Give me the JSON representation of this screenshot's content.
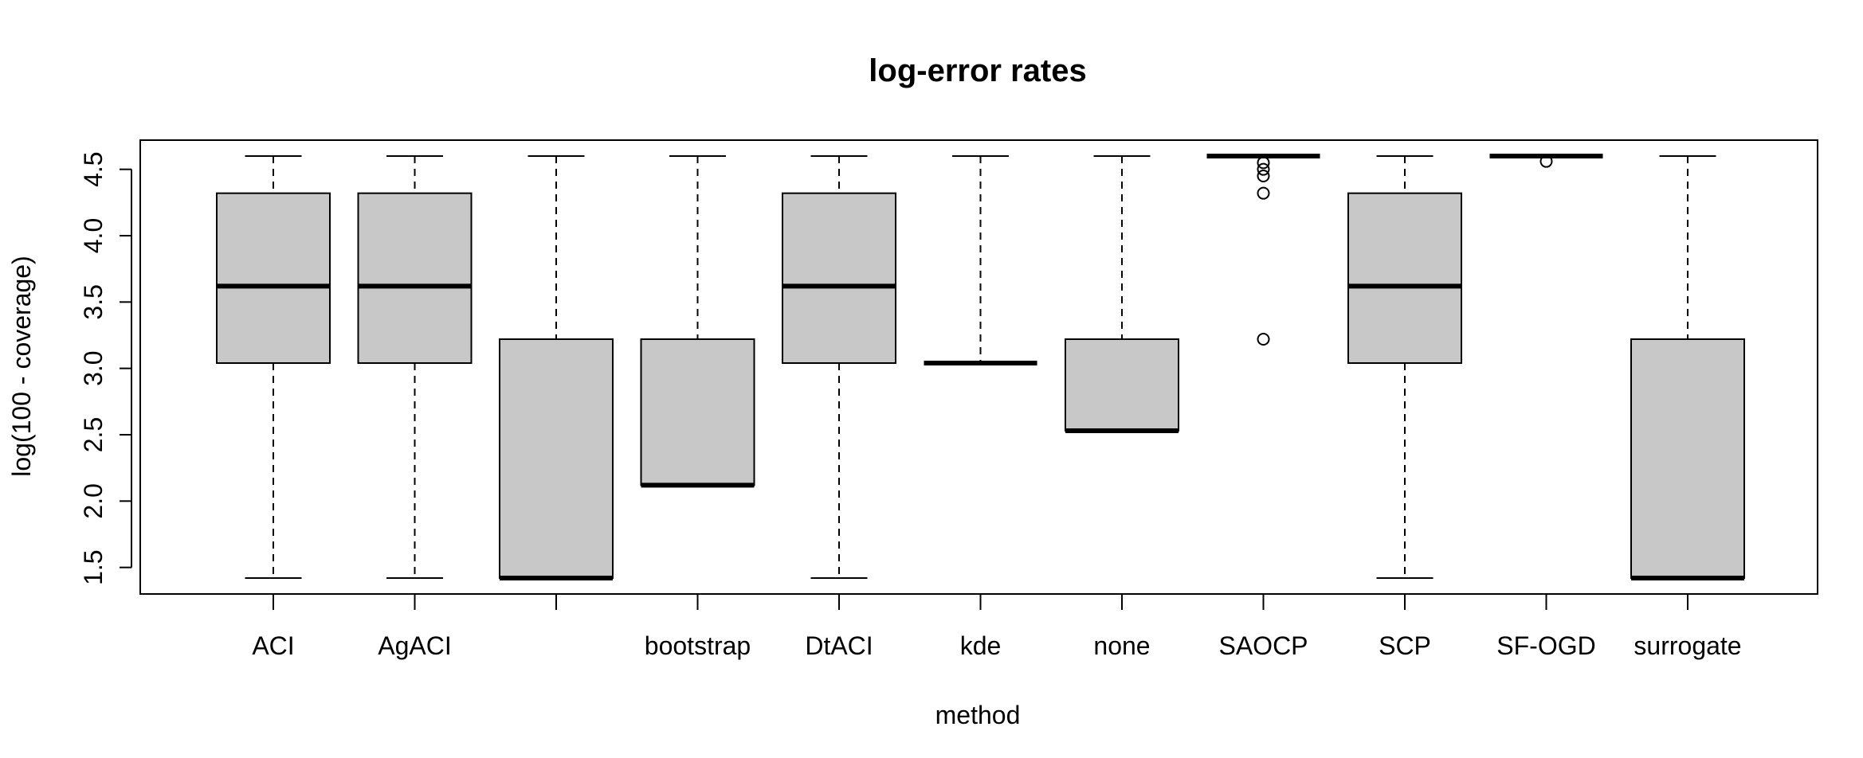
{
  "chart_data": {
    "type": "boxplot",
    "title": "log-error rates",
    "xlabel": "method",
    "ylabel": "log(100 - coverage)",
    "ylim": [
      1.3,
      4.72
    ],
    "yticks": [
      1.5,
      2.0,
      2.5,
      3.0,
      3.5,
      4.0,
      4.5
    ],
    "ytick_labels": [
      "1.5",
      "2.0",
      "2.5",
      "3.0",
      "3.5",
      "4.0",
      "4.5"
    ],
    "grid": false,
    "colors": {
      "box_fill": "#c8c8c8",
      "stroke": "#000000"
    },
    "categories": [
      "ACI",
      "AgACI",
      "",
      "bootstrap",
      "DtACI",
      "kde",
      "none",
      "SAOCP",
      "SCP",
      "SF-OGD",
      "surrogate"
    ],
    "boxes": [
      {
        "whisker_low": 1.42,
        "q1": 3.04,
        "median": 3.62,
        "q3": 4.32,
        "whisker_high": 4.6,
        "outliers": []
      },
      {
        "whisker_low": 1.42,
        "q1": 3.04,
        "median": 3.62,
        "q3": 4.32,
        "whisker_high": 4.6,
        "outliers": []
      },
      {
        "whisker_low": 1.42,
        "q1": 1.42,
        "median": 1.42,
        "q3": 3.22,
        "whisker_high": 4.6,
        "outliers": []
      },
      {
        "whisker_low": 2.12,
        "q1": 2.12,
        "median": 2.12,
        "q3": 3.22,
        "whisker_high": 4.6,
        "outliers": []
      },
      {
        "whisker_low": 1.42,
        "q1": 3.04,
        "median": 3.62,
        "q3": 4.32,
        "whisker_high": 4.6,
        "outliers": []
      },
      {
        "whisker_low": 3.04,
        "q1": 3.04,
        "median": 3.04,
        "q3": 3.04,
        "whisker_high": 4.6,
        "outliers": []
      },
      {
        "whisker_low": 2.53,
        "q1": 2.53,
        "median": 2.53,
        "q3": 3.22,
        "whisker_high": 4.6,
        "outliers": []
      },
      {
        "whisker_low": 4.6,
        "q1": 4.6,
        "median": 4.6,
        "q3": 4.6,
        "whisker_high": 4.6,
        "outliers": [
          4.55,
          4.5,
          4.45,
          4.32,
          3.22
        ]
      },
      {
        "whisker_low": 1.42,
        "q1": 3.04,
        "median": 3.62,
        "q3": 4.32,
        "whisker_high": 4.6,
        "outliers": []
      },
      {
        "whisker_low": 4.6,
        "q1": 4.6,
        "median": 4.6,
        "q3": 4.6,
        "whisker_high": 4.6,
        "outliers": [
          4.56
        ]
      },
      {
        "whisker_low": 1.42,
        "q1": 1.42,
        "median": 1.42,
        "q3": 3.22,
        "whisker_high": 4.6,
        "outliers": []
      }
    ]
  }
}
